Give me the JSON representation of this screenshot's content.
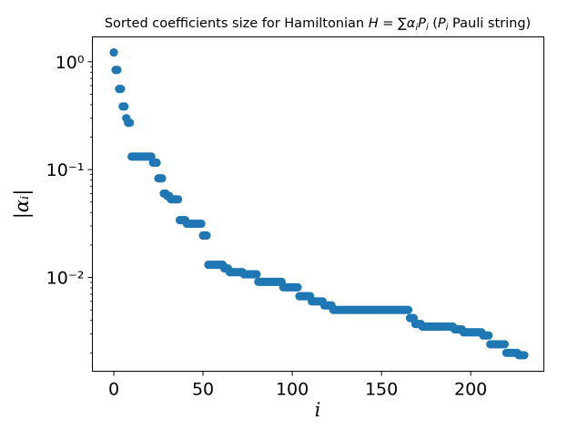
{
  "chart_data": {
    "type": "scatter",
    "title": "Sorted coefficients size for Hamiltonian H = ∑αᵢPᵢ   (Pᵢ Pauli string)",
    "xlabel": "i",
    "ylabel": "|αᵢ|",
    "xscale": "linear",
    "yscale": "log",
    "xlim": [
      -12,
      241
    ],
    "ylim": [
      0.00135,
      1.7
    ],
    "grid": false,
    "legend": "none",
    "marker_color": "#1f77b4",
    "x_ticks": [
      0,
      50,
      100,
      150,
      200
    ],
    "x_tick_labels": [
      "0",
      "50",
      "100",
      "150",
      "200"
    ],
    "y_ticks": [
      1,
      0.1,
      0.01
    ],
    "y_tick_labels": [
      "10⁰",
      "10⁻¹",
      "10⁻²"
    ],
    "segments": [
      {
        "x_start": 0,
        "x_end": 0,
        "value": 1.22
      },
      {
        "x_start": 1,
        "x_end": 2,
        "value": 0.84
      },
      {
        "x_start": 3,
        "x_end": 4,
        "value": 0.56
      },
      {
        "x_start": 5,
        "x_end": 6,
        "value": 0.385
      },
      {
        "x_start": 7,
        "x_end": 7,
        "value": 0.3
      },
      {
        "x_start": 8,
        "x_end": 9,
        "value": 0.272
      },
      {
        "x_start": 10,
        "x_end": 21,
        "value": 0.132
      },
      {
        "x_start": 22,
        "x_end": 24,
        "value": 0.116
      },
      {
        "x_start": 25,
        "x_end": 27,
        "value": 0.083
      },
      {
        "x_start": 28,
        "x_end": 29,
        "value": 0.06
      },
      {
        "x_start": 30,
        "x_end": 31,
        "value": 0.057
      },
      {
        "x_start": 32,
        "x_end": 36,
        "value": 0.053
      },
      {
        "x_start": 37,
        "x_end": 40,
        "value": 0.034
      },
      {
        "x_start": 41,
        "x_end": 49,
        "value": 0.0315
      },
      {
        "x_start": 50,
        "x_end": 52,
        "value": 0.0245
      },
      {
        "x_start": 53,
        "x_end": 61,
        "value": 0.0131
      },
      {
        "x_start": 62,
        "x_end": 64,
        "value": 0.0121
      },
      {
        "x_start": 65,
        "x_end": 72,
        "value": 0.0112
      },
      {
        "x_start": 73,
        "x_end": 80,
        "value": 0.0107
      },
      {
        "x_start": 81,
        "x_end": 94,
        "value": 0.0091
      },
      {
        "x_start": 95,
        "x_end": 103,
        "value": 0.0081
      },
      {
        "x_start": 104,
        "x_end": 110,
        "value": 0.0067
      },
      {
        "x_start": 111,
        "x_end": 117,
        "value": 0.006
      },
      {
        "x_start": 118,
        "x_end": 122,
        "value": 0.0055
      },
      {
        "x_start": 123,
        "x_end": 165,
        "value": 0.005
      },
      {
        "x_start": 166,
        "x_end": 168,
        "value": 0.0042
      },
      {
        "x_start": 169,
        "x_end": 172,
        "value": 0.0037
      },
      {
        "x_start": 173,
        "x_end": 190,
        "value": 0.0035
      },
      {
        "x_start": 191,
        "x_end": 195,
        "value": 0.0033
      },
      {
        "x_start": 196,
        "x_end": 206,
        "value": 0.0031
      },
      {
        "x_start": 207,
        "x_end": 210,
        "value": 0.0029
      },
      {
        "x_start": 211,
        "x_end": 219,
        "value": 0.0024
      },
      {
        "x_start": 220,
        "x_end": 226,
        "value": 0.002
      },
      {
        "x_start": 227,
        "x_end": 230,
        "value": 0.0019
      }
    ]
  }
}
